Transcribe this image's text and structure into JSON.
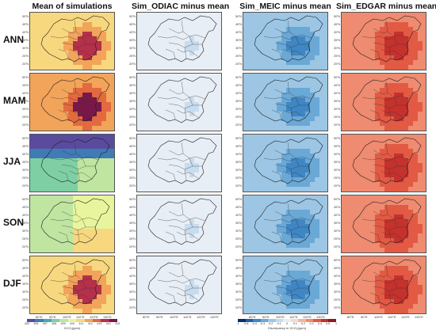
{
  "chart_data": {
    "type": "heatmap",
    "columns": [
      {
        "id": "mean",
        "title": "Mean of simulations"
      },
      {
        "id": "odiac",
        "title": "Sim_ODIAC minus mean"
      },
      {
        "id": "meic",
        "title": "Sim_MEIC minus mean"
      },
      {
        "id": "edgar",
        "title": "Sim_EDGAR minus mean"
      }
    ],
    "rows": [
      "ANN",
      "MAM",
      "JJA",
      "SON",
      "DJF"
    ],
    "lat_ticks": [
      "50°N",
      "45°N",
      "40°N",
      "35°N",
      "30°N",
      "25°N",
      "20°N"
    ],
    "lon_ticks": [
      "80°E",
      "90°E",
      "100°E",
      "110°E",
      "120°E",
      "130°E"
    ],
    "colorbar_mean": {
      "label": "XCO₂(ppm)",
      "ticks": [
        "403",
        "405",
        "407",
        "408",
        "409",
        "410",
        "411",
        "412",
        "413",
        "414",
        "415"
      ],
      "colors": [
        "#5a4b9e",
        "#3f7bb5",
        "#48a7b4",
        "#7fcfa4",
        "#bfe5a0",
        "#e9f59c",
        "#f7d87f",
        "#f2a45a",
        "#e26a3e",
        "#b5304a",
        "#7a1749"
      ]
    },
    "colorbar_diff": {
      "label": "Discrepancy in XCO₂(ppm)",
      "ticks": [
        "-1",
        "-0.6",
        "-0.4",
        "-0.3",
        "-0.2",
        "-0.1",
        "0",
        "0.1",
        "0.2",
        "0.3",
        "0.4",
        "0.6",
        "1"
      ],
      "colors": [
        "#08306b",
        "#1f5fa8",
        "#3f86c4",
        "#6aa8d6",
        "#9cc6e4",
        "#c7dcef",
        "#e8eef5",
        "#f8d9cc",
        "#f3b5a0",
        "#ee8b70",
        "#e25a44",
        "#c5312c",
        "#8f1a1c"
      ]
    }
  }
}
